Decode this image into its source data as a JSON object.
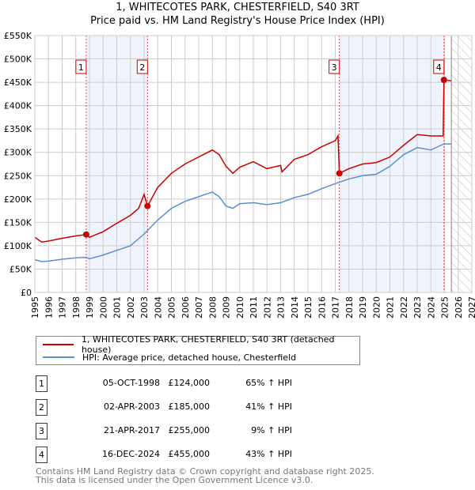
{
  "chart_data": {
    "type": "line",
    "title": "1, WHITECOTES PARK, CHESTERFIELD, S40 3RT",
    "subtitle": "Price paid vs. HM Land Registry's House Price Index (HPI)",
    "xlim": [
      1995,
      2027
    ],
    "ylim": [
      0,
      550000
    ],
    "y_ticks": [
      0,
      50000,
      100000,
      150000,
      200000,
      250000,
      300000,
      350000,
      400000,
      450000,
      500000,
      550000
    ],
    "y_tick_labels": [
      "£0",
      "£50K",
      "£100K",
      "£150K",
      "£200K",
      "£250K",
      "£300K",
      "£350K",
      "£400K",
      "£450K",
      "£500K",
      "£550K"
    ],
    "x_ticks": [
      "1995",
      "1996",
      "1997",
      "1998",
      "1999",
      "2000",
      "2001",
      "2002",
      "2003",
      "2004",
      "2005",
      "2006",
      "2007",
      "2008",
      "2009",
      "2010",
      "2011",
      "2012",
      "2013",
      "2014",
      "2015",
      "2016",
      "2017",
      "2018",
      "2019",
      "2020",
      "2021",
      "2022",
      "2023",
      "2024",
      "2025",
      "2026",
      "2027"
    ],
    "grid": true,
    "series": [
      {
        "name": "1, WHITECOTES PARK, CHESTERFIELD, S40 3RT (detached house)",
        "color": "#cc0000",
        "x": [
          1995,
          1995.5,
          1996,
          1997,
          1998,
          1998.76,
          1999,
          2000,
          2001,
          2002,
          2002.6,
          2003.0,
          2003.25,
          2004,
          2005,
          2006,
          2007,
          2008,
          2008.5,
          2009,
          2009.5,
          2010,
          2011,
          2012,
          2013,
          2013.1,
          2014,
          2015,
          2016,
          2017.0,
          2017.2,
          2017.3,
          2018,
          2019,
          2020,
          2021,
          2022,
          2023,
          2024,
          2024.9,
          2024.96,
          2025.5
        ],
        "y": [
          118000,
          108000,
          110000,
          116000,
          121000,
          124000,
          118000,
          130000,
          148000,
          165000,
          180000,
          210000,
          185000,
          225000,
          255000,
          275000,
          290000,
          305000,
          295000,
          270000,
          255000,
          268000,
          280000,
          265000,
          272000,
          258000,
          285000,
          295000,
          312000,
          325000,
          335000,
          255000,
          265000,
          275000,
          278000,
          290000,
          315000,
          338000,
          335000,
          335000,
          455000,
          453000
        ]
      },
      {
        "name": "HPI: Average price, detached house, Chesterfield",
        "color": "#5b8fd0",
        "x": [
          1995,
          1995.5,
          1996,
          1997,
          1998,
          1998.76,
          1999,
          2000,
          2001,
          2002,
          2003,
          2004,
          2005,
          2006,
          2007,
          2008,
          2008.5,
          2009,
          2009.5,
          2010,
          2011,
          2012,
          2013,
          2014,
          2015,
          2016,
          2017,
          2018,
          2019,
          2020,
          2021,
          2022,
          2023,
          2024,
          2024.96,
          2025.5
        ],
        "y": [
          70000,
          66000,
          67000,
          71000,
          74000,
          75000,
          72000,
          80000,
          90000,
          100000,
          125000,
          155000,
          180000,
          195000,
          205000,
          215000,
          205000,
          185000,
          180000,
          190000,
          192000,
          188000,
          192000,
          203000,
          210000,
          222000,
          233000,
          243000,
          250000,
          253000,
          270000,
          295000,
          310000,
          305000,
          318000,
          318000
        ]
      }
    ],
    "sales": [
      {
        "label": "1",
        "x": 1998.76,
        "y": 124000,
        "date": "05-OCT-1998",
        "price": "£124,000",
        "hpi": "65% ↑ HPI"
      },
      {
        "label": "2",
        "x": 2003.25,
        "y": 185000,
        "date": "02-APR-2003",
        "price": "£185,000",
        "hpi": "41% ↑ HPI"
      },
      {
        "label": "3",
        "x": 2017.3,
        "y": 255000,
        "date": "21-APR-2017",
        "price": "£255,000",
        "hpi": "9% ↑ HPI"
      },
      {
        "label": "4",
        "x": 2024.96,
        "y": 455000,
        "date": "16-DEC-2024",
        "price": "£455,000",
        "hpi": "43% ↑ HPI"
      }
    ],
    "shaded_ranges": [
      [
        1998.76,
        2003.25
      ],
      [
        2017.3,
        2024.96
      ]
    ],
    "forecast_start": 2025.5,
    "legend_position": "bottom"
  },
  "footer": {
    "line1": "Contains HM Land Registry data © Crown copyright and database right 2025.",
    "line2": "This data is licensed under the Open Government Licence v3.0."
  }
}
